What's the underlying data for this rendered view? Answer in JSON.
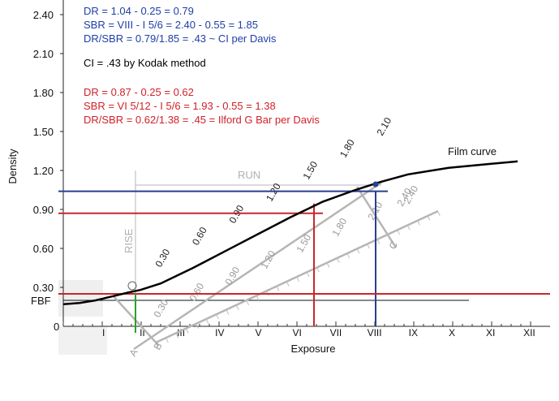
{
  "chart_data": {
    "type": "line",
    "xlabel": "Exposure",
    "ylabel": "Density",
    "yticks": [
      "2.40",
      "2.10",
      "1.80",
      "1.50",
      "1.20",
      "0.90",
      "0.60",
      "0.30"
    ],
    "xzero": "0",
    "fbf_label": "FBF",
    "zones": [
      "I",
      "II",
      "III",
      "IV",
      "V",
      "VI",
      "VII",
      "VIII",
      "IX",
      "X",
      "XI",
      "XII"
    ],
    "ylim": [
      0,
      2.4
    ],
    "series": [
      {
        "name": "Film curve",
        "x": [
          0,
          0.4,
          0.8,
          1.2,
          1.6,
          1.9,
          2.4,
          3.2,
          4.0,
          4.8,
          5.6,
          6.4,
          7.2,
          7.8,
          8.5,
          9.5,
          10.5,
          11.2
        ],
        "y": [
          0.17,
          0.18,
          0.2,
          0.23,
          0.26,
          0.28,
          0.33,
          0.45,
          0.58,
          0.71,
          0.84,
          0.96,
          1.05,
          1.11,
          1.17,
          1.22,
          1.25,
          1.27
        ]
      }
    ],
    "annotations": {
      "run": "RUN",
      "rise": "RISE",
      "scale_a_ticks": [
        "0.30",
        "0.60",
        "0.90",
        "1.20",
        "1.50",
        "1.80",
        "2.10"
      ],
      "scale_b_ticks": [
        "0.30",
        "0.60",
        "0.90",
        "1.20",
        "1.50",
        "1.80",
        "2.10",
        "2.40"
      ],
      "scale_a_end": "A",
      "scale_b_end": "B",
      "scale_c_end": "C",
      "scale_c_label": "2.40"
    },
    "notes_blue": [
      "DR = 1.04 - 0.25 = 0.79",
      "SBR = VIII - I 5/6 = 2.40 - 0.55 = 1.85",
      "DR/SBR = 0.79/1.85 = .43 ~ CI per Davis"
    ],
    "note_black": "CI = .43 by Kodak method",
    "notes_red": [
      "DR = 0.87 - 0.25 = 0.62",
      "SBR = VI 5/12 - I 5/6 = 1.93 - 0.55 = 1.38",
      "DR/SBR = 0.62/1.38 = .45 = Ilford G Bar per Davis"
    ],
    "lines": {
      "blue_density": 1.04,
      "red_density": 0.87,
      "base_density": 0.25,
      "blue_zone": 8,
      "red_zone": 6.42,
      "green_zone": 1.83
    },
    "colors": {
      "blue": "#2a3f8f",
      "red": "#c8282a",
      "green": "#2aa02a",
      "note_blue": "#1f3fa8",
      "note_red": "#d0222a"
    }
  }
}
